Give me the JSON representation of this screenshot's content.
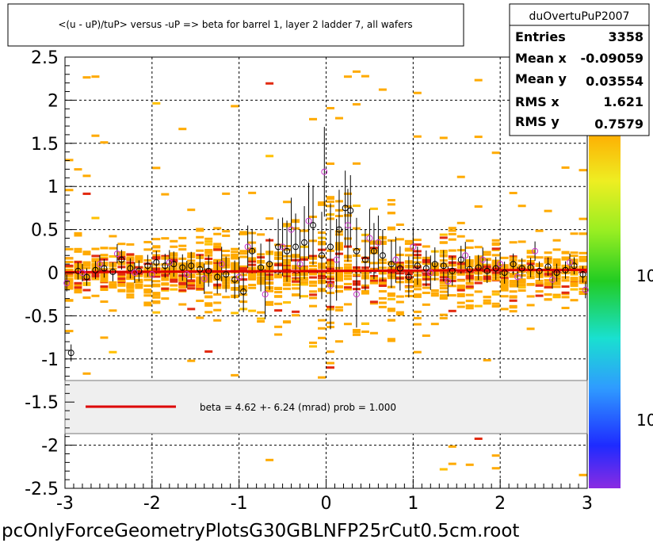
{
  "chart_data": {
    "type": "scatter",
    "title": "<(u - uP)/tuP> versus  -uP => beta for barrel 1, layer 2 ladder 7, all wafers",
    "xlabel": "",
    "ylabel": "",
    "xlim": [
      -3,
      3
    ],
    "ylim": [
      -2.5,
      2.5
    ],
    "grid": true,
    "x_ticks": [
      "-3",
      "-2",
      "-1",
      "0",
      "1",
      "2",
      "3"
    ],
    "y_ticks": [
      "-2.5",
      "-2",
      "-1.5",
      "-1",
      "-0.5",
      "0",
      "0.5",
      "1",
      "1.5",
      "2",
      "2.5"
    ],
    "colorbar_labels": [
      "10",
      "10"
    ],
    "fit_line": {
      "slope": 0.00462,
      "intercept": 0.02,
      "color": "#dd0000"
    },
    "legend": {
      "label": "beta =    4.62 +-  6.24 (mrad) prob = 1.000",
      "placement": "lower-middle"
    },
    "stats": {
      "name": "duOvertuPuP2007",
      "rows": [
        {
          "label": "Entries",
          "value": "3358"
        },
        {
          "label": "Mean x",
          "value": "-0.09059"
        },
        {
          "label": "Mean y",
          "value": "0.03554"
        },
        {
          "label": "RMS x",
          "value": "1.621"
        },
        {
          "label": "RMS y",
          "value": "0.7579"
        }
      ]
    },
    "footer": "pcOnlyForceGeometryPlotsG30GBLNFP25rCut0.5cm.root",
    "series": [
      {
        "marker": "black-circle",
        "points": [
          [
            -2.93,
            -0.93
          ],
          [
            -2.85,
            0.02
          ],
          [
            -2.75,
            -0.05
          ],
          [
            -2.65,
            0.03
          ],
          [
            -2.55,
            0.05
          ],
          [
            -2.45,
            0.01
          ],
          [
            -2.35,
            0.15
          ],
          [
            -2.25,
            0.05
          ],
          [
            -2.15,
            0.02
          ],
          [
            -2.05,
            0.08
          ],
          [
            -1.95,
            0.12
          ],
          [
            -1.85,
            0.08
          ],
          [
            -1.75,
            0.1
          ],
          [
            -1.65,
            0.06
          ],
          [
            -1.55,
            0.08
          ],
          [
            -1.45,
            0.04
          ],
          [
            -1.35,
            0.02
          ],
          [
            -1.25,
            -0.05
          ],
          [
            -1.15,
            -0.02
          ],
          [
            -1.05,
            -0.08
          ],
          [
            -0.95,
            -0.22
          ],
          [
            -0.85,
            0.25
          ],
          [
            -0.75,
            0.06
          ],
          [
            -0.65,
            0.1
          ],
          [
            -0.55,
            0.3
          ],
          [
            -0.45,
            0.25
          ],
          [
            -0.35,
            0.3
          ],
          [
            -0.25,
            0.35
          ],
          [
            -0.15,
            0.55
          ],
          [
            -0.05,
            0.2
          ],
          [
            0.05,
            0.3
          ],
          [
            0.15,
            0.5
          ],
          [
            0.22,
            0.75
          ],
          [
            0.28,
            0.72
          ],
          [
            0.35,
            0.25
          ],
          [
            0.45,
            0.15
          ],
          [
            0.55,
            0.25
          ],
          [
            0.65,
            0.2
          ],
          [
            0.75,
            0.1
          ],
          [
            0.85,
            0.05
          ],
          [
            0.95,
            -0.05
          ],
          [
            1.05,
            0.08
          ],
          [
            1.15,
            0.05
          ],
          [
            1.25,
            0.1
          ],
          [
            1.35,
            0.08
          ],
          [
            1.45,
            0.02
          ],
          [
            1.55,
            0.15
          ],
          [
            1.65,
            0.04
          ],
          [
            1.75,
            0.06
          ],
          [
            1.85,
            0.02
          ],
          [
            1.95,
            0.05
          ],
          [
            2.05,
            0.0
          ],
          [
            2.15,
            0.1
          ],
          [
            2.25,
            0.05
          ],
          [
            2.35,
            0.06
          ],
          [
            2.45,
            0.02
          ],
          [
            2.55,
            0.07
          ],
          [
            2.65,
            0.0
          ],
          [
            2.75,
            0.03
          ],
          [
            2.85,
            0.08
          ],
          [
            2.95,
            -0.02
          ]
        ]
      },
      {
        "marker": "magenta-circle",
        "points": [
          [
            -2.98,
            -0.12
          ],
          [
            -2.8,
            0.0
          ],
          [
            -2.6,
            0.1
          ],
          [
            -2.4,
            0.22
          ],
          [
            -2.2,
            0.0
          ],
          [
            -2.0,
            -0.02
          ],
          [
            -1.8,
            0.12
          ],
          [
            -1.6,
            -0.02
          ],
          [
            -1.4,
            -0.07
          ],
          [
            -1.2,
            0.1
          ],
          [
            -1.0,
            -0.05
          ],
          [
            -0.9,
            0.3
          ],
          [
            -0.7,
            -0.25
          ],
          [
            -0.5,
            0.3
          ],
          [
            -0.4,
            0.5
          ],
          [
            -0.3,
            0.1
          ],
          [
            -0.2,
            0.6
          ],
          [
            -0.02,
            1.17
          ],
          [
            0.05,
            -0.15
          ],
          [
            0.12,
            0.15
          ],
          [
            0.25,
            0.55
          ],
          [
            0.35,
            -0.25
          ],
          [
            0.5,
            0.4
          ],
          [
            0.6,
            0.35
          ],
          [
            0.8,
            0.15
          ],
          [
            1.0,
            0.3
          ],
          [
            1.2,
            0.0
          ],
          [
            1.4,
            -0.1
          ],
          [
            1.6,
            0.2
          ],
          [
            1.8,
            0.15
          ],
          [
            2.0,
            0.1
          ],
          [
            2.2,
            -0.05
          ],
          [
            2.4,
            0.25
          ],
          [
            2.6,
            -0.08
          ],
          [
            2.8,
            0.12
          ],
          [
            2.98,
            -0.2
          ]
        ]
      }
    ]
  }
}
